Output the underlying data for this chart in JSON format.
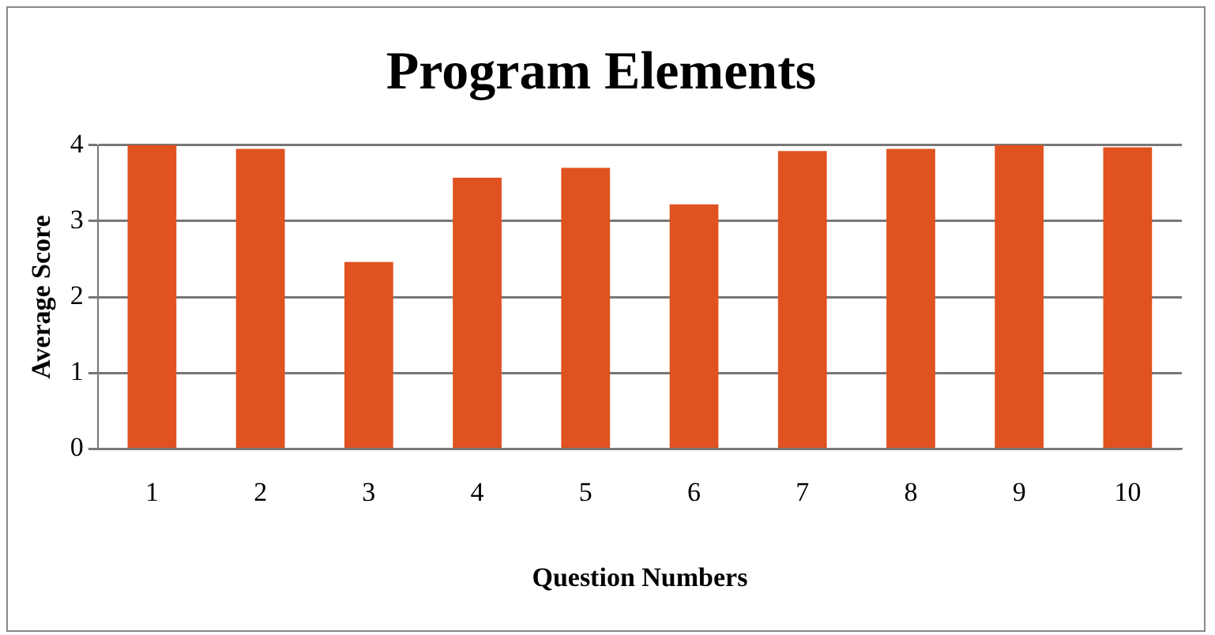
{
  "chart_data": {
    "type": "bar",
    "title": "Program Elements",
    "xlabel": "Question Numbers",
    "ylabel": "Average Score",
    "categories": [
      "1",
      "2",
      "3",
      "4",
      "5",
      "6",
      "7",
      "8",
      "9",
      "10"
    ],
    "values": [
      4.0,
      3.95,
      2.46,
      3.57,
      3.7,
      3.22,
      3.92,
      3.95,
      4.0,
      3.97
    ],
    "color": "#e0521f",
    "ylim": [
      0,
      4
    ],
    "yticks": [
      0,
      1,
      2,
      3,
      4
    ],
    "grid": "y"
  }
}
